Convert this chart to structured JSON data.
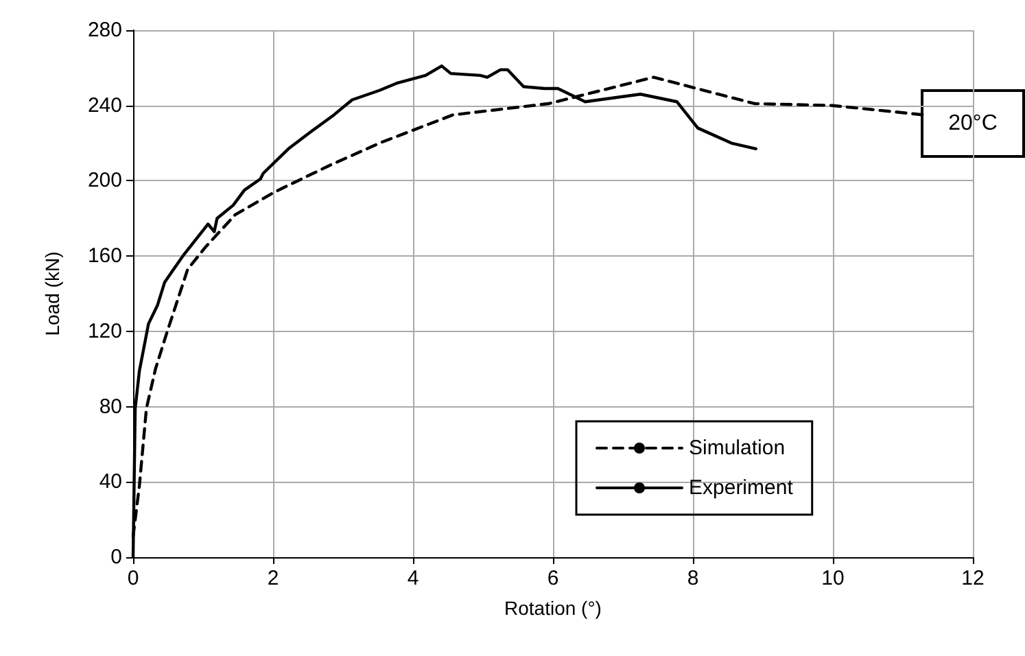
{
  "chart_data": {
    "type": "line",
    "xlabel": "Rotation (°)",
    "ylabel": "Load (kN)",
    "xlim": [
      0,
      12
    ],
    "xticks": [
      0,
      2,
      4,
      6,
      8,
      10,
      12
    ],
    "ylim": [
      0,
      280
    ],
    "yticks": [
      0,
      40,
      80,
      120,
      160,
      200,
      240,
      280
    ],
    "grid": true,
    "legend": "bottom right",
    "marker": "none",
    "annotations": [
      "20°C"
    ],
    "series": [
      {
        "name": "Simulation",
        "color": "#000000",
        "line_style": "dashed",
        "x": [
          0,
          0.09,
          0.19,
          0.32,
          0.48,
          0.78,
          1.04,
          1.46,
          2.02,
          2.8,
          3.52,
          4.57,
          5.94,
          7.44,
          8.88,
          9.99,
          11.3
        ],
        "values": [
          11,
          38,
          79,
          100,
          119,
          153,
          165,
          182,
          194,
          208,
          220,
          235,
          241,
          255,
          241,
          240,
          235
        ]
      },
      {
        "name": "Experiment",
        "color": "#000000",
        "line_style": "solid",
        "x": [
          0,
          0.03,
          0.09,
          0.22,
          0.35,
          0.45,
          0.71,
          1.07,
          1.16,
          1.2,
          1.43,
          1.59,
          1.82,
          1.86,
          2.22,
          2.54,
          2.87,
          3.13,
          3.52,
          3.78,
          4.18,
          4.41,
          4.54,
          4.96,
          5.06,
          5.25,
          5.35,
          5.58,
          5.88,
          6.07,
          6.46,
          7.25,
          7.77,
          8.07,
          8.55,
          8.9
        ],
        "values": [
          0,
          79,
          99,
          124,
          134,
          146,
          160,
          177,
          173,
          180,
          187,
          195,
          201,
          204,
          217,
          226,
          235,
          243,
          248,
          252,
          256,
          261,
          257,
          256,
          255,
          259,
          259,
          250,
          249,
          249,
          242,
          246,
          242,
          228,
          220,
          217
        ]
      }
    ]
  }
}
